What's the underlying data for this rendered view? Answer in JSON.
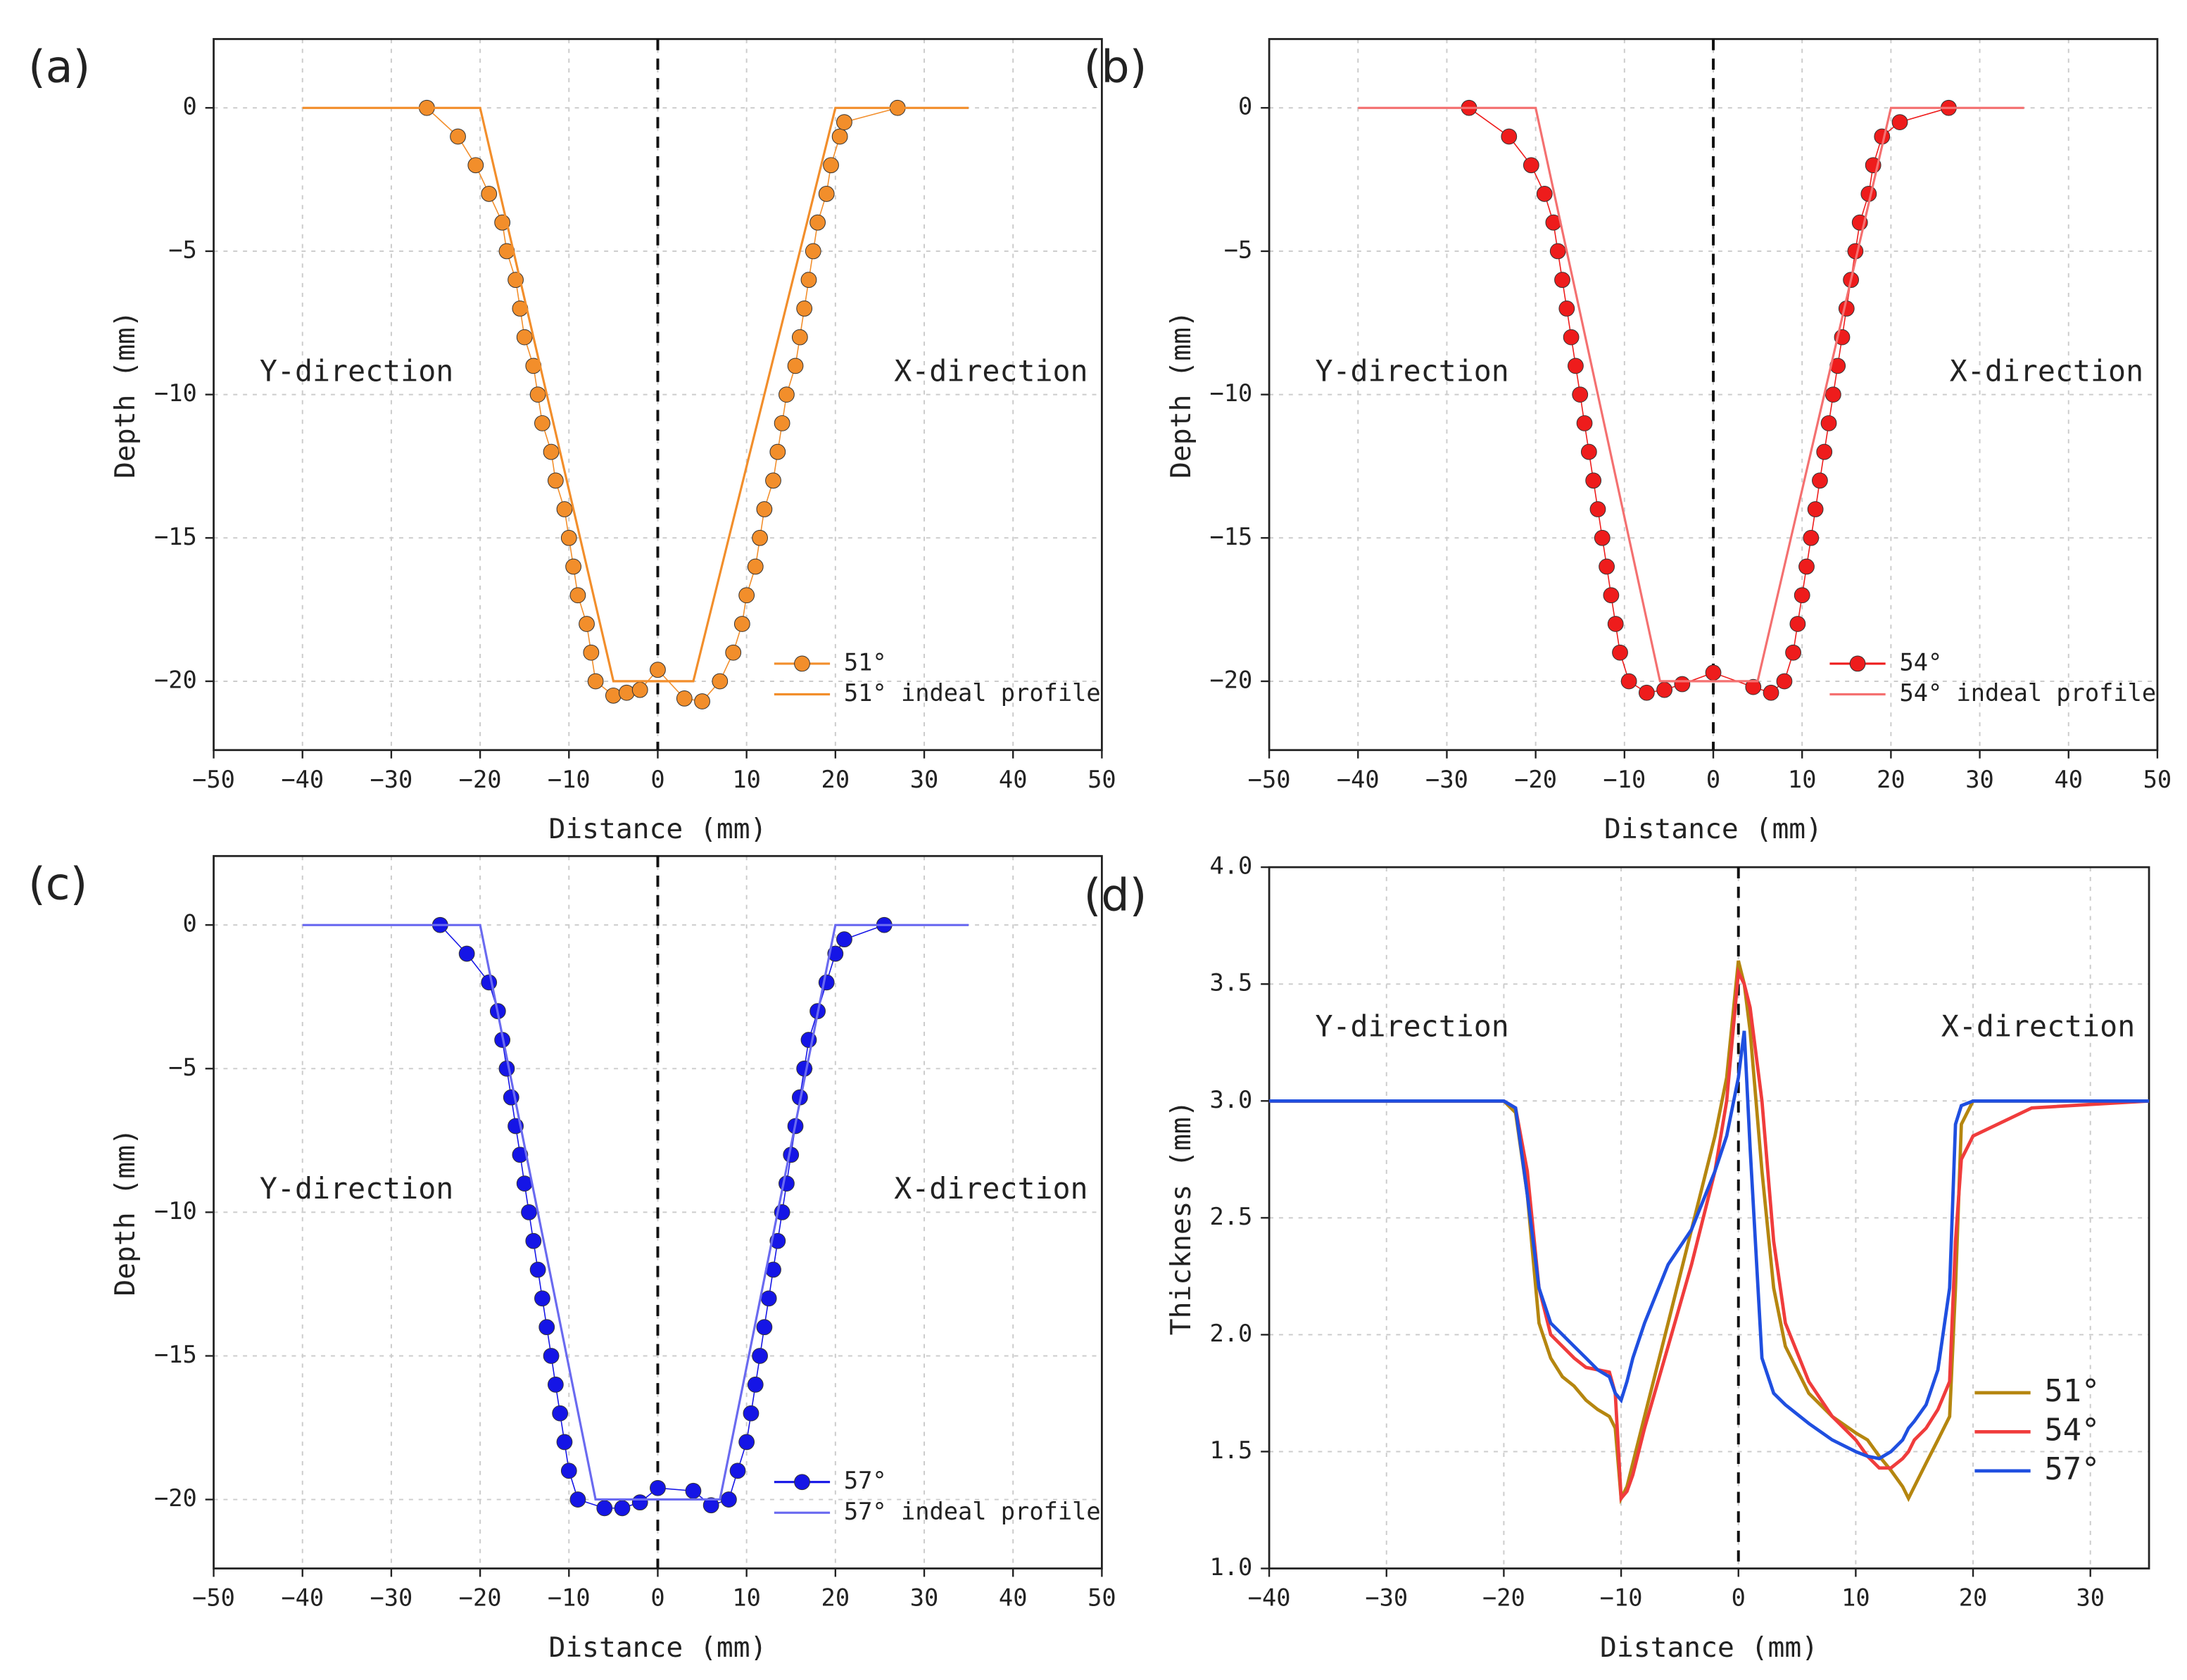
{
  "chart_data": [
    {
      "type": "line",
      "panel_label": "(a)",
      "xlabel": "Distance (mm)",
      "ylabel": "Depth (mm)",
      "annotations": [
        "Y-direction",
        "X-direction"
      ],
      "reference_line_x": 0,
      "grid": true,
      "legend": "lower right",
      "xlim": [
        -50,
        50
      ],
      "ylim": [
        -22.4,
        2.4
      ],
      "xticks": [
        {
          "value": -50,
          "label": "−50"
        },
        {
          "value": -40,
          "label": "−40"
        },
        {
          "value": -30,
          "label": "−30"
        },
        {
          "value": -20,
          "label": "−20"
        },
        {
          "value": -10,
          "label": "−10"
        },
        0,
        10,
        20,
        30,
        40,
        50
      ],
      "yticks": [
        {
          "value": -20,
          "label": "−20"
        },
        {
          "value": -15,
          "label": "−15"
        },
        {
          "value": -10,
          "label": "−10"
        },
        {
          "value": -5,
          "label": "−5"
        },
        0
      ],
      "series": [
        {
          "name": "51°",
          "color": "#f28e2b",
          "markers": true,
          "x": [
            -26,
            -22.5,
            -20.5,
            -19,
            -17.5,
            -17,
            -16,
            -15.5,
            -15,
            -14,
            -13.5,
            -13,
            -12,
            -11.5,
            -10.5,
            -10,
            -9.5,
            -9,
            -8,
            -7.5,
            -7,
            -5,
            -3.5,
            -2,
            0,
            3,
            5,
            7,
            8.5,
            9.5,
            10,
            11,
            11.5,
            12,
            13,
            13.5,
            14,
            14.5,
            15.5,
            16,
            16.5,
            17,
            17.5,
            18,
            19,
            19.5,
            20.5,
            21,
            27
          ],
          "values": [
            0,
            -1,
            -2,
            -3,
            -4,
            -5,
            -6,
            -7,
            -8,
            -9,
            -10,
            -11,
            -12,
            -13,
            -14,
            -15,
            -16,
            -17,
            -18,
            -19,
            -20,
            -20.5,
            -20.4,
            -20.3,
            -19.6,
            -20.6,
            -20.7,
            -20,
            -19,
            -18,
            -17,
            -16,
            -15,
            -14,
            -13,
            -12,
            -11,
            -10,
            -9,
            -8,
            -7,
            -6,
            -5,
            -4,
            -3,
            -2,
            -1,
            -0.5,
            0
          ]
        },
        {
          "name": "51° indeal profile",
          "color": "#f28e2b",
          "markers": false,
          "x": [
            -40,
            -20,
            -5,
            4,
            20,
            35
          ],
          "values": [
            0,
            0,
            -20,
            -20,
            0,
            0
          ]
        }
      ]
    },
    {
      "type": "line",
      "panel_label": "(b)",
      "xlabel": "Distance (mm)",
      "ylabel": "Depth (mm)",
      "annotations": [
        "Y-direction",
        "X-direction"
      ],
      "reference_line_x": 0,
      "grid": true,
      "legend": "lower right",
      "xlim": [
        -50,
        50
      ],
      "ylim": [
        -22.4,
        2.4
      ],
      "xticks": [
        {
          "value": -50,
          "label": "−50"
        },
        {
          "value": -40,
          "label": "−40"
        },
        {
          "value": -30,
          "label": "−30"
        },
        {
          "value": -20,
          "label": "−20"
        },
        {
          "value": -10,
          "label": "−10"
        },
        0,
        10,
        20,
        30,
        40,
        50
      ],
      "yticks": [
        {
          "value": -20,
          "label": "−20"
        },
        {
          "value": -15,
          "label": "−15"
        },
        {
          "value": -10,
          "label": "−10"
        },
        {
          "value": -5,
          "label": "−5"
        },
        0
      ],
      "series": [
        {
          "name": "54°",
          "color": "#ee1c1c",
          "markers": true,
          "x": [
            -27.5,
            -23,
            -20.5,
            -19,
            -18,
            -17.5,
            -17,
            -16.5,
            -16,
            -15.5,
            -15,
            -14.5,
            -14,
            -13.5,
            -13,
            -12.5,
            -12,
            -11.5,
            -11,
            -10.5,
            -9.5,
            -7.5,
            -5.5,
            -3.5,
            0,
            4.5,
            6.5,
            8,
            9,
            9.5,
            10,
            10.5,
            11,
            11.5,
            12,
            12.5,
            13,
            13.5,
            14,
            14.5,
            15,
            15.5,
            16,
            16.5,
            17.5,
            18,
            19,
            21,
            26.5
          ],
          "values": [
            0,
            -1,
            -2,
            -3,
            -4,
            -5,
            -6,
            -7,
            -8,
            -9,
            -10,
            -11,
            -12,
            -13,
            -14,
            -15,
            -16,
            -17,
            -18,
            -19,
            -20,
            -20.4,
            -20.3,
            -20.1,
            -19.7,
            -20.2,
            -20.4,
            -20,
            -19,
            -18,
            -17,
            -16,
            -15,
            -14,
            -13,
            -12,
            -11,
            -10,
            -9,
            -8,
            -7,
            -6,
            -5,
            -4,
            -3,
            -2,
            -1,
            -0.5,
            0
          ]
        },
        {
          "name": "54°  indeal profile",
          "color": "#f47070",
          "markers": false,
          "x": [
            -40,
            -20,
            -6,
            5,
            20,
            35
          ],
          "values": [
            0,
            0,
            -20,
            -20,
            0,
            0
          ]
        }
      ]
    },
    {
      "type": "line",
      "panel_label": "(c)",
      "xlabel": "Distance (mm)",
      "ylabel": "Depth (mm)",
      "annotations": [
        "Y-direction",
        "X-direction"
      ],
      "reference_line_x": 0,
      "grid": true,
      "legend": "lower right",
      "xlim": [
        -50,
        50
      ],
      "ylim": [
        -22.4,
        2.4
      ],
      "xticks": [
        {
          "value": -50,
          "label": "−50"
        },
        {
          "value": -40,
          "label": "−40"
        },
        {
          "value": -30,
          "label": "−30"
        },
        {
          "value": -20,
          "label": "−20"
        },
        {
          "value": -10,
          "label": "−10"
        },
        0,
        10,
        20,
        30,
        40,
        50
      ],
      "yticks": [
        {
          "value": -20,
          "label": "−20"
        },
        {
          "value": -15,
          "label": "−15"
        },
        {
          "value": -10,
          "label": "−10"
        },
        {
          "value": -5,
          "label": "−5"
        },
        0
      ],
      "series": [
        {
          "name": "57°",
          "color": "#1515e6",
          "markers": true,
          "x": [
            -24.5,
            -21.5,
            -19,
            -18,
            -17.5,
            -17,
            -16.5,
            -16,
            -15.5,
            -15,
            -14.5,
            -14,
            -13.5,
            -13,
            -12.5,
            -12,
            -11.5,
            -11,
            -10.5,
            -10,
            -9,
            -6,
            -4,
            -2,
            0,
            4,
            6,
            8,
            9,
            10,
            10.5,
            11,
            11.5,
            12,
            12.5,
            13,
            13.5,
            14,
            14.5,
            15,
            15.5,
            16,
            16.5,
            17,
            18,
            19,
            20,
            21,
            25.5
          ],
          "values": [
            0,
            -1,
            -2,
            -3,
            -4,
            -5,
            -6,
            -7,
            -8,
            -9,
            -10,
            -11,
            -12,
            -13,
            -14,
            -15,
            -16,
            -17,
            -18,
            -19,
            -20,
            -20.3,
            -20.3,
            -20.1,
            -19.6,
            -19.7,
            -20.2,
            -20,
            -19,
            -18,
            -17,
            -16,
            -15,
            -14,
            -13,
            -12,
            -11,
            -10,
            -9,
            -8,
            -7,
            -6,
            -5,
            -4,
            -3,
            -2,
            -1,
            -0.5,
            0
          ]
        },
        {
          "name": "57° indeal profile",
          "color": "#6a6af0",
          "markers": false,
          "x": [
            -40,
            -20,
            -7,
            7,
            20,
            35
          ],
          "values": [
            0,
            0,
            -20,
            -20,
            0,
            0
          ]
        }
      ]
    },
    {
      "type": "line",
      "panel_label": "(d)",
      "xlabel": "Distance (mm)",
      "ylabel": "Thickness (mm)",
      "annotations": [
        "Y-direction",
        "X-direction"
      ],
      "reference_line_x": 0,
      "grid": true,
      "legend": "lower right",
      "xlim": [
        -40,
        35
      ],
      "ylim": [
        1.0,
        4.0
      ],
      "xticks": [
        {
          "value": -40,
          "label": "−40"
        },
        {
          "value": -30,
          "label": "−30"
        },
        {
          "value": -20,
          "label": "−20"
        },
        {
          "value": -10,
          "label": "−10"
        },
        0,
        10,
        20,
        30
      ],
      "yticks": [
        {
          "value": 1,
          "label": "1.0"
        },
        1.5,
        {
          "value": 2,
          "label": "2.0"
        },
        2.5,
        {
          "value": 3,
          "label": "3.0"
        },
        3.5,
        {
          "value": 4,
          "label": "4.0"
        }
      ],
      "x": [
        -40,
        -20,
        -19,
        -18,
        -17,
        -16,
        -15,
        -14,
        -13,
        -12,
        -11,
        -10.5,
        -10,
        -9.5,
        -9,
        -8,
        -6,
        -4,
        -2,
        -1,
        0,
        0.5,
        1,
        2,
        3,
        4,
        6,
        8,
        10,
        11,
        12,
        13,
        14,
        14.5,
        15,
        16,
        17,
        18,
        18.5,
        19,
        20,
        25,
        35
      ],
      "series": [
        {
          "name": "51°",
          "color": "#b5860f",
          "markers": false,
          "values": [
            3,
            3,
            2.95,
            2.6,
            2.05,
            1.9,
            1.82,
            1.78,
            1.72,
            1.68,
            1.65,
            1.6,
            1.3,
            1.35,
            1.45,
            1.65,
            2.05,
            2.45,
            2.85,
            3.1,
            3.6,
            3.5,
            3.3,
            2.7,
            2.2,
            1.95,
            1.75,
            1.65,
            1.58,
            1.55,
            1.48,
            1.42,
            1.35,
            1.3,
            1.35,
            1.45,
            1.55,
            1.65,
            2.2,
            2.9,
            3,
            3,
            3
          ]
        },
        {
          "name": "54°",
          "color": "#f03c3c",
          "markers": false,
          "values": [
            3,
            3,
            2.97,
            2.7,
            2.2,
            2,
            1.95,
            1.9,
            1.86,
            1.85,
            1.84,
            1.75,
            1.3,
            1.33,
            1.4,
            1.6,
            1.95,
            2.3,
            2.7,
            3,
            3.55,
            3.5,
            3.4,
            3,
            2.4,
            2.05,
            1.8,
            1.65,
            1.55,
            1.48,
            1.43,
            1.43,
            1.47,
            1.5,
            1.55,
            1.6,
            1.68,
            1.8,
            2.4,
            2.75,
            2.85,
            2.97,
            3
          ]
        },
        {
          "name": "57°",
          "color": "#1f4fe0",
          "markers": false,
          "values": [
            3,
            3,
            2.97,
            2.6,
            2.2,
            2.05,
            2,
            1.95,
            1.9,
            1.85,
            1.82,
            1.75,
            1.72,
            1.8,
            1.9,
            2.05,
            2.3,
            2.45,
            2.7,
            2.85,
            3.1,
            3.3,
            2.8,
            1.9,
            1.75,
            1.7,
            1.62,
            1.55,
            1.5,
            1.48,
            1.47,
            1.5,
            1.55,
            1.6,
            1.63,
            1.7,
            1.85,
            2.2,
            2.9,
            2.98,
            3,
            3,
            3
          ]
        }
      ]
    }
  ]
}
